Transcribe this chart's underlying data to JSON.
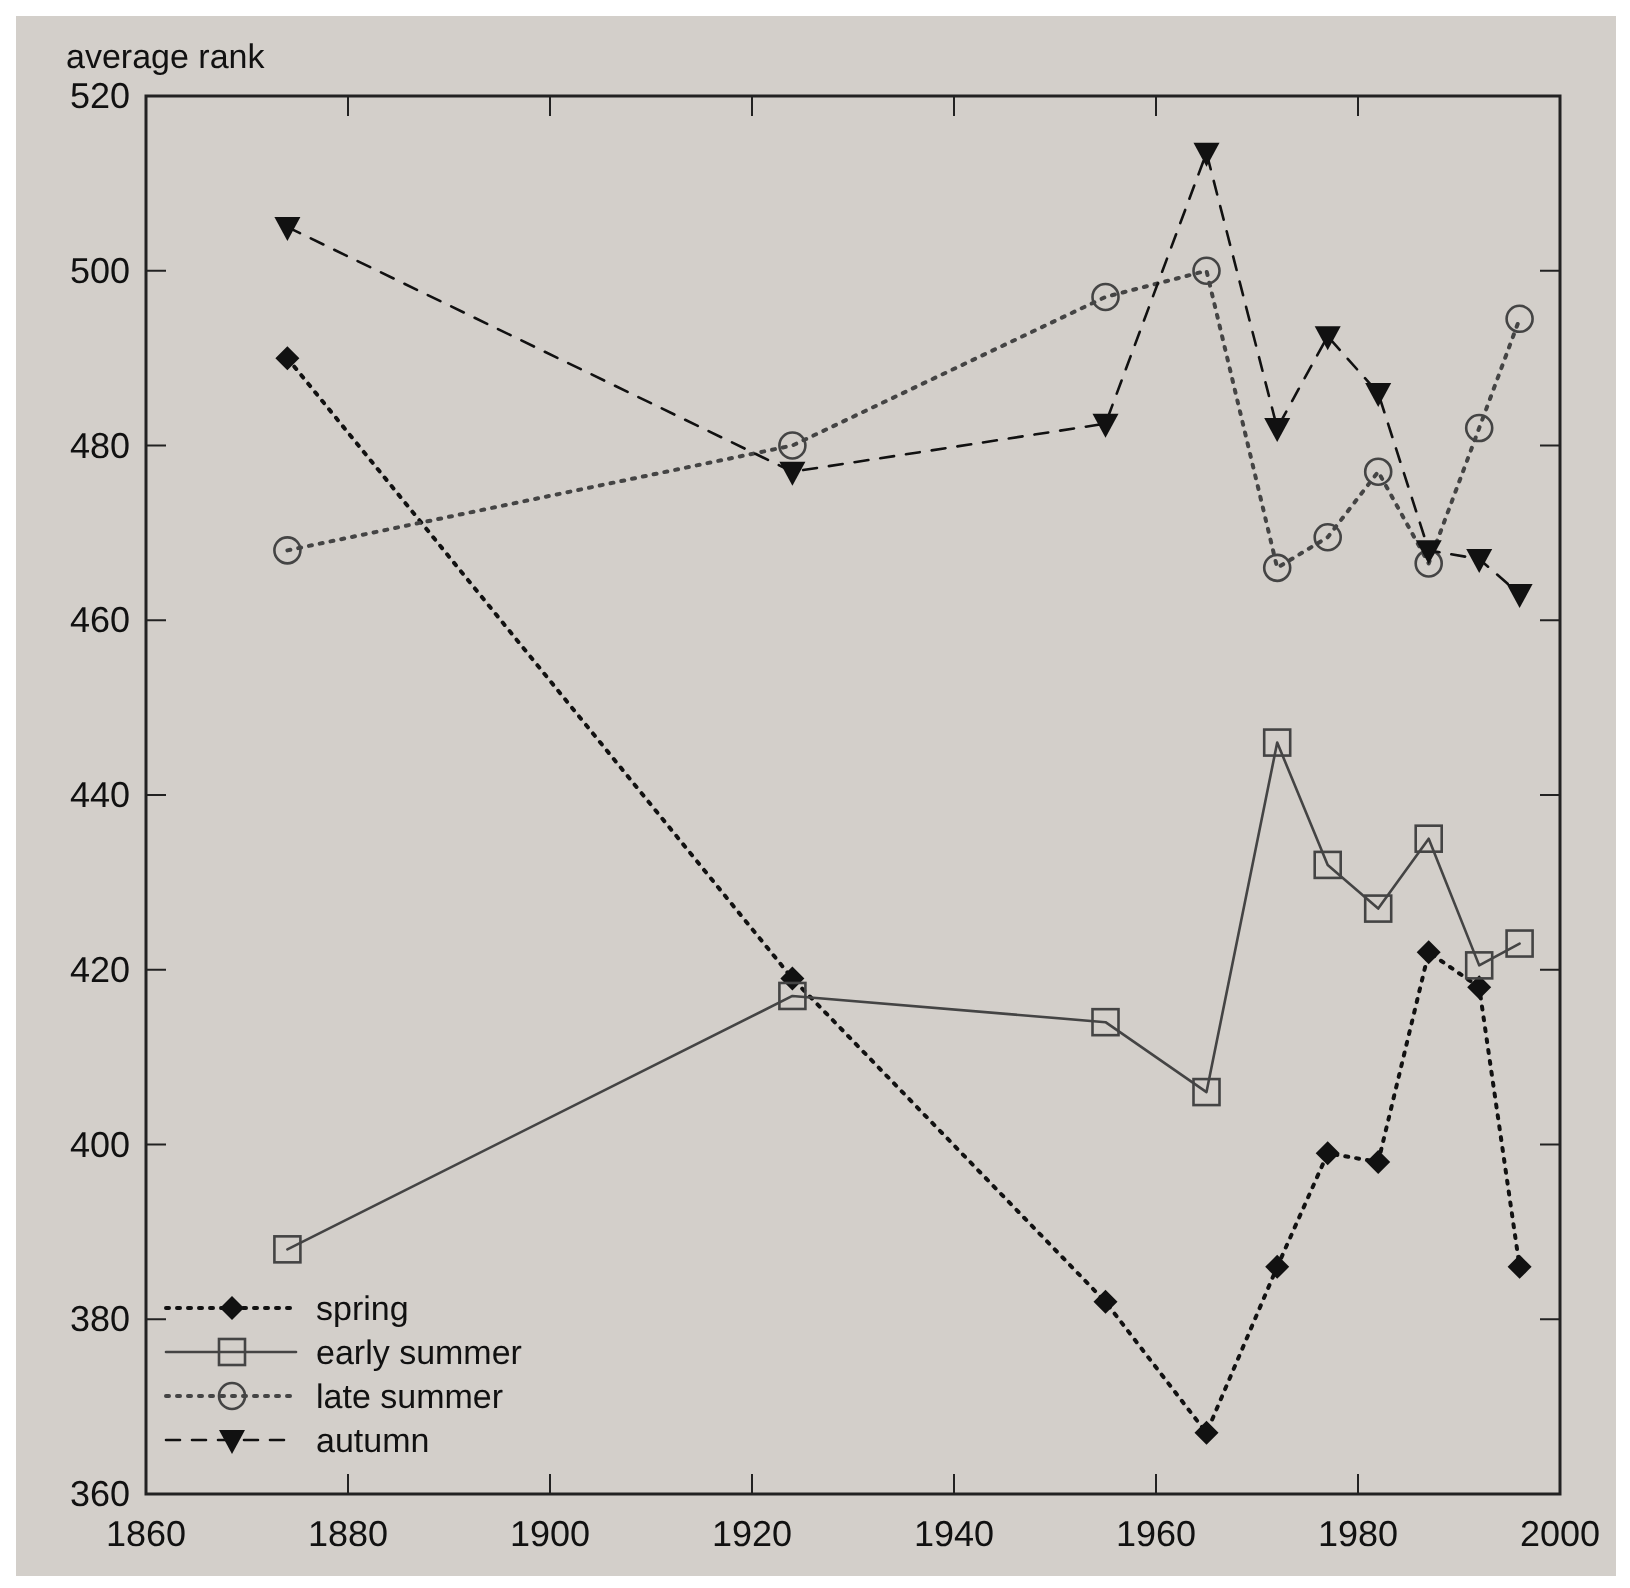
{
  "chart_data": {
    "type": "line",
    "ylabel": "average rank",
    "x": [
      1874,
      1924,
      1955,
      1965,
      1972,
      1977,
      1982,
      1987,
      1992,
      1996
    ],
    "xlim": [
      1860,
      2000
    ],
    "xticks": [
      1860,
      1880,
      1900,
      1920,
      1940,
      1960,
      1980,
      2000
    ],
    "ylim": [
      360,
      520
    ],
    "yticks": [
      360,
      380,
      400,
      420,
      440,
      460,
      480,
      500,
      520
    ],
    "grid": false,
    "legend": "bottom left",
    "series": [
      {
        "name": "spring",
        "color": "#111111",
        "marker": "diamond",
        "line_style": "dotted",
        "values": [
          490,
          419,
          382,
          367,
          386,
          399,
          398,
          422,
          418,
          386
        ]
      },
      {
        "name": "early summer",
        "color": "#444444",
        "marker": "square",
        "line_style": "solid",
        "values": [
          388,
          417,
          414,
          406,
          446,
          432,
          427,
          435,
          420.5,
          423
        ]
      },
      {
        "name": "late summer",
        "color": "#444444",
        "marker": "circle",
        "line_style": "dotted",
        "values": [
          468,
          480,
          497,
          500,
          466,
          469.5,
          477,
          466.5,
          482,
          494.5
        ]
      },
      {
        "name": "autumn",
        "color": "#111111",
        "marker": "triangle",
        "line_style": "dashed",
        "values": [
          505,
          477,
          482.5,
          513.5,
          482,
          492.5,
          486,
          468,
          467,
          463
        ]
      }
    ]
  }
}
